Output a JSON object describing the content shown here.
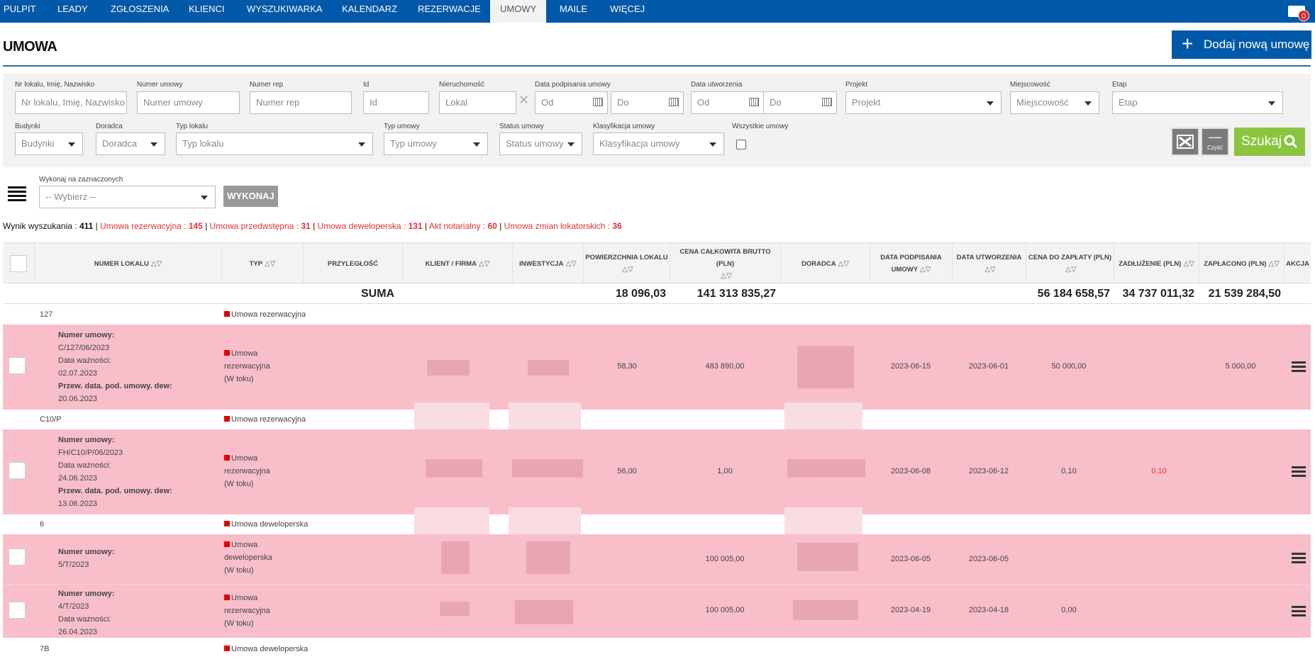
{
  "nav": {
    "items": [
      "PULPIT",
      "LEADY",
      "ZGŁOSZENIA",
      "KLIENCI",
      "WYSZUKIWARKA",
      "KALENDARZ",
      "REZERWACJE",
      "UMOWY",
      "MAILE",
      "WIĘCEJ"
    ],
    "active": "UMOWY",
    "notification_count": "0"
  },
  "page": {
    "title": "UMOWA",
    "add_button": "Dodaj nową umowę"
  },
  "filters": {
    "lokal_label": "Nr lokalu, Imię, Nazwisko",
    "lokal_placeholder": "Nr lokalu, Imię, Nazwisko",
    "numer_label": "Numer umowy",
    "numer_placeholder": "Numer umowy",
    "rep_label": "Numer rep",
    "rep_placeholder": "Numer rep",
    "id_label": "Id",
    "id_placeholder": "Id",
    "nier_label": "Nieruchomość",
    "nier_placeholder": "Lokal",
    "podp_label": "Data podpisania umowy",
    "od": "Od",
    "do": "Do",
    "utw_label": "Data utworzenia",
    "projekt_label": "Projekt",
    "projekt_value": "Projekt",
    "miejsc_label": "Miejscowość",
    "miejsc_value": "Miejscowość",
    "etap_label": "Etap",
    "etap_value": "Etap",
    "budynki_label": "Budynki",
    "budynki_value": "Budynki",
    "doradca_label": "Doradca",
    "doradca_value": "Doradca",
    "typlok_label": "Typ lokalu",
    "typlok_value": "Typ lokalu",
    "typum_label": "Typ umowy",
    "typum_value": "Typ umowy",
    "status_label": "Status umowy",
    "status_value": "Status umowy",
    "klas_label": "Klasyfikacja umowy",
    "klas_value": "Klasyfikacja umowy",
    "wszystkie_label": "Wszystkie umowy",
    "czysc": "Czyść",
    "szukaj": "Szukaj"
  },
  "bulk": {
    "label": "Wykonaj na zaznaczonych",
    "placeholder": "-- Wybierz --",
    "button": "WYKONAJ"
  },
  "summary": {
    "prefix": "Wynik wyszukania : ",
    "total": "411",
    "rez_label": "Umowa rezerwacyjna : ",
    "rez": "145",
    "prze_label": "Umowa przedwstępna : ",
    "prze": "31",
    "dew_label": "Umowa deweloperska : ",
    "dew": "131",
    "akt_label": "Akt notarialny : ",
    "akt": "60",
    "zmian_label": "Umowa zmian lokatorskich : ",
    "zmian": "36"
  },
  "table": {
    "headers": {
      "numer": "NUMER LOKALU",
      "typ": "TYP",
      "przyl": "PRZYLEGŁOŚĆ",
      "klient": "KLIENT / FIRMA",
      "inw": "INWESTYCJA",
      "pow": "POWIERZCHNIA LOKALU",
      "cena": "CENA CAŁKOWITA BRUTTO (PLN)",
      "dor": "DORADCA",
      "dpodp": "DATA PODPISANIA UMOWY",
      "dutw": "DATA UTWORZENIA",
      "cdz": "CENA DO ZAPŁATY (PLN)",
      "zadl": "ZADŁUŻENIE (PLN)",
      "zapl": "ZAPŁACONO (PLN)",
      "akcja": "AKCJA"
    },
    "sum": {
      "label": "SUMA",
      "pow": "18 096,03",
      "cena": "141 313 835,27",
      "cdz": "56 184 658,57",
      "zadl": "34 737 011,32",
      "zapl": "21 539 284,50"
    },
    "groups": [
      {
        "code": "127",
        "type": "Umowa rezerwacyjna"
      },
      {
        "code": "C10/P",
        "type": "Umowa rezerwacyjna"
      },
      {
        "code": "6",
        "type": "Umowa deweloperska"
      },
      {
        "code": "7B",
        "type": "Umowa deweloperska"
      }
    ],
    "labels": {
      "numer": "Numer umowy:",
      "waznosc": "Data ważności:",
      "przew": "Przew. data. pod. umowy. dew:"
    },
    "rows": [
      {
        "numer": "C/127/06/2023",
        "waznosc": "02.07.2023",
        "przew": "20.06.2023",
        "typ1": "Umowa",
        "typ2": "rezerwacyjna",
        "status": "(W toku)",
        "pow": "58,30",
        "cena": "483 890,00",
        "dpodp": "2023-06-15",
        "dutw": "2023-06-01",
        "cdz": "50 000,00",
        "zadl": "",
        "zapl": "5 000,00"
      },
      {
        "numer": "FH/C10/P/06/2023",
        "waznosc": "24.06.2023",
        "przew": "13.06.2023",
        "typ1": "Umowa",
        "typ2": "rezerwacyjna",
        "status": "(W toku)",
        "pow": "56,00",
        "cena": "1,00",
        "dpodp": "2023-06-08",
        "dutw": "2023-06-12",
        "cdz": "0,10",
        "zadl": "0,10",
        "zapl": ""
      },
      {
        "numer": "5/T/2023",
        "typ1": "Umowa",
        "typ2": "deweloperska",
        "status": "(W toku)",
        "pow": "",
        "cena": "100 005,00",
        "dpodp": "2023-06-05",
        "dutw": "2023-06-05",
        "cdz": "",
        "zadl": "",
        "zapl": ""
      },
      {
        "numer": "4/T/2023",
        "waznosc": "26.04.2023",
        "typ1": "Umowa",
        "typ2": "rezerwacyjna",
        "status": "(W toku)",
        "pow": "",
        "cena": "100 005,00",
        "dpodp": "2023-04-19",
        "dutw": "2023-04-18",
        "cdz": "0,00",
        "zadl": "",
        "zapl": ""
      }
    ]
  }
}
